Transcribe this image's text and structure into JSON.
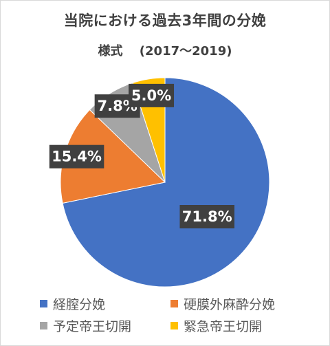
{
  "chart_data": {
    "type": "pie",
    "title": "当院における過去3年間の分娩",
    "subtitle": "様式　 (2017～2019)",
    "categories": [
      "経膣分娩",
      "硬膜外麻酔分娩",
      "予定帝王切開",
      "緊急帝王切開"
    ],
    "values": [
      71.8,
      15.4,
      7.8,
      5.0
    ],
    "labels": [
      "71.8%",
      "15.4%",
      "7.8%",
      "5.0%"
    ],
    "colors": [
      "#4472C4",
      "#ED7D31",
      "#A5A5A5",
      "#FFC000"
    ],
    "legend_position": "bottom"
  }
}
